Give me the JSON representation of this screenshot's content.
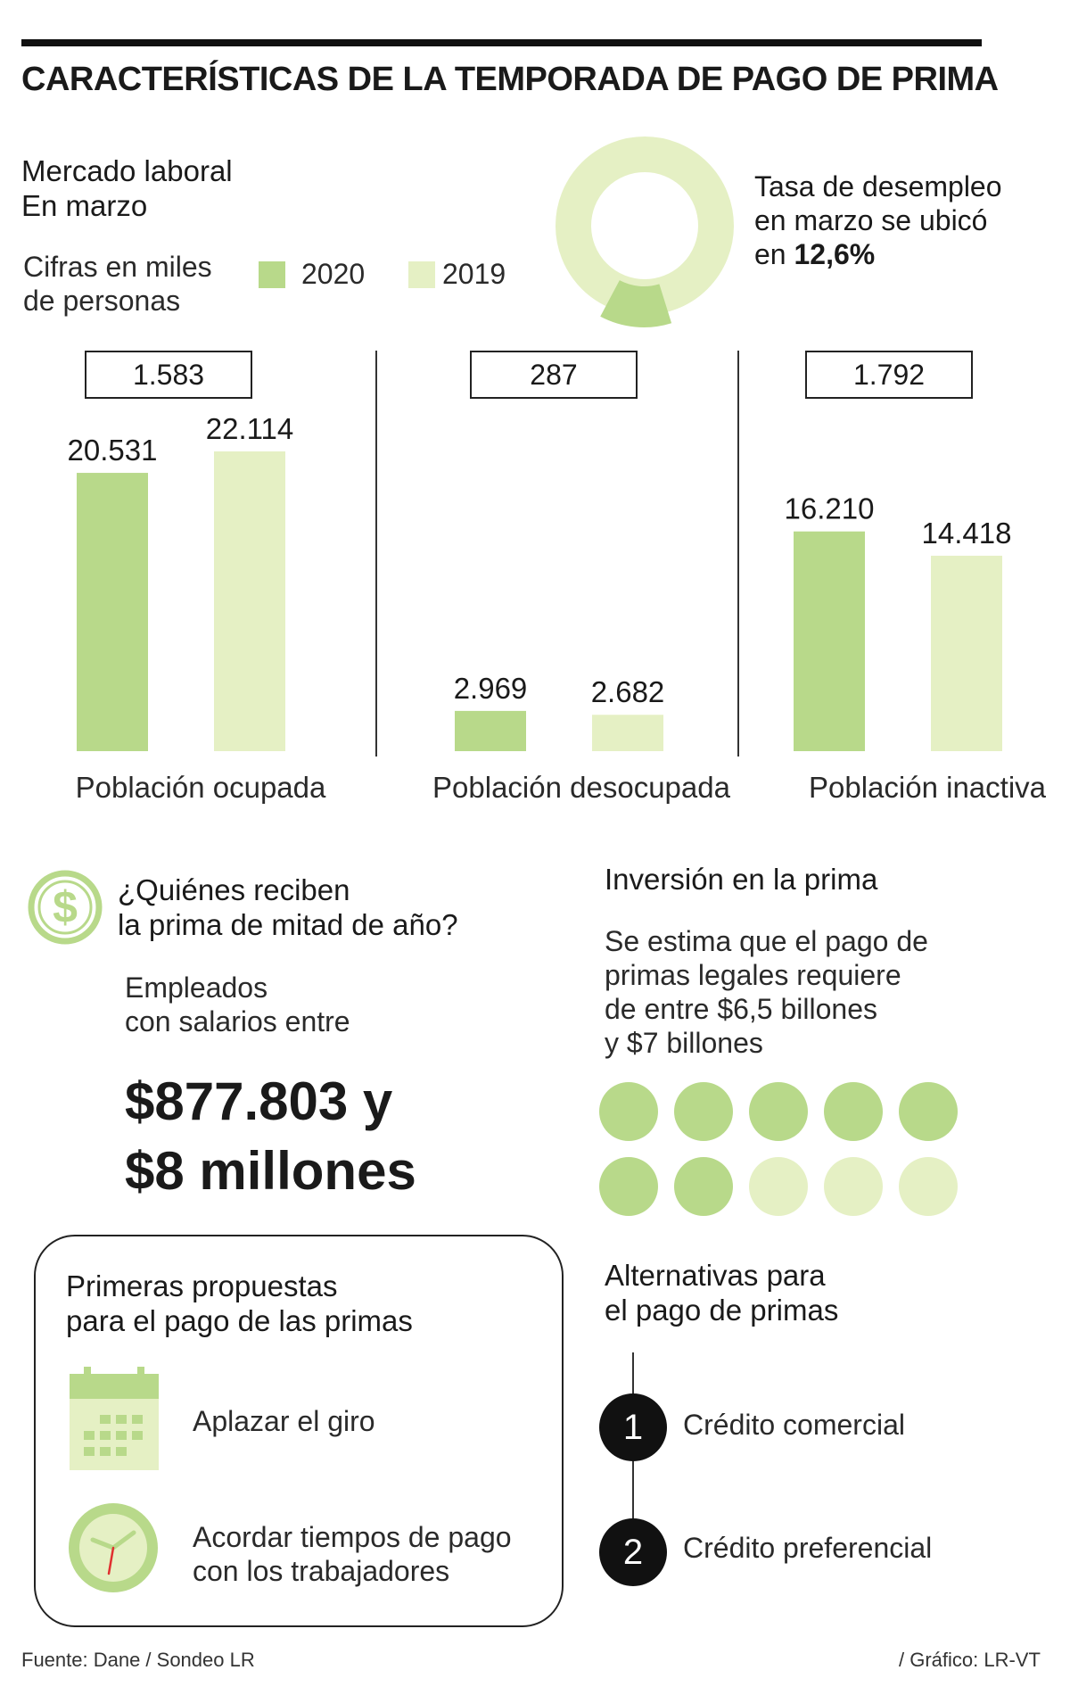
{
  "title": "CARACTERÍSTICAS DE LA TEMPORADA DE PAGO DE PRIMA",
  "colors": {
    "y2020": "#b8d98a",
    "y2019": "#e5f0c4",
    "dark": "#111111"
  },
  "mercado": {
    "heading_line1": "Mercado laboral",
    "heading_line2": "En marzo",
    "units_line1": "Cifras en miles",
    "units_line2": "de personas",
    "legend_2020": "2020",
    "legend_2019": "2019"
  },
  "desempleo": {
    "line1": "Tasa de desempleo",
    "line2": "en marzo se ubicó",
    "line3_prefix": "en",
    "value": "12,6%",
    "fraction": 0.126
  },
  "chart_data": {
    "type": "bar",
    "categories": [
      "Población ocupada",
      "Población desocupada",
      "Población inactiva"
    ],
    "series": [
      {
        "name": "2020",
        "values": [
          20531,
          2969,
          16210
        ],
        "labels": [
          "20.531",
          "2.969",
          "16.210"
        ]
      },
      {
        "name": "2019",
        "values": [
          22114,
          2682,
          14418
        ],
        "labels": [
          "22.114",
          "2.682",
          "14.418"
        ]
      }
    ],
    "differences": [
      "1.583",
      "287",
      "1.792"
    ],
    "ylim": [
      0,
      22114
    ],
    "legend_position": "top",
    "grid": false
  },
  "quienes": {
    "line1": "¿Quiénes reciben",
    "line2": "la prima de mitad de año?",
    "desc_line1": "Empleados",
    "desc_line2": "con salarios entre",
    "big_line1": "$877.803 y",
    "big_line2": "$8 millones"
  },
  "inversion": {
    "heading": "Inversión en la prima",
    "line1": "Se estima que el pago de",
    "line2": "primas legales requiere",
    "line3": "de entre $6,5 billones",
    "line4": "y $7 billones",
    "dots_total": 10,
    "dots_filled": 7
  },
  "propuestas": {
    "heading_line1": "Primeras propuestas",
    "heading_line2": "para el pago de las primas",
    "item1": "Aplazar el giro",
    "item2_line1": "Acordar tiempos de pago",
    "item2_line2": "con los trabajadores",
    "icons": [
      "calendar-icon",
      "clock-icon"
    ]
  },
  "alternativas": {
    "heading_line1": "Alternativas para",
    "heading_line2": "el pago de primas",
    "items": [
      {
        "number": "1",
        "label": "Crédito comercial"
      },
      {
        "number": "2",
        "label": "Crédito preferencial"
      }
    ]
  },
  "footer": {
    "source": "Fuente: Dane / Sondeo LR",
    "credit": "/ Gráfico: LR-VT"
  }
}
